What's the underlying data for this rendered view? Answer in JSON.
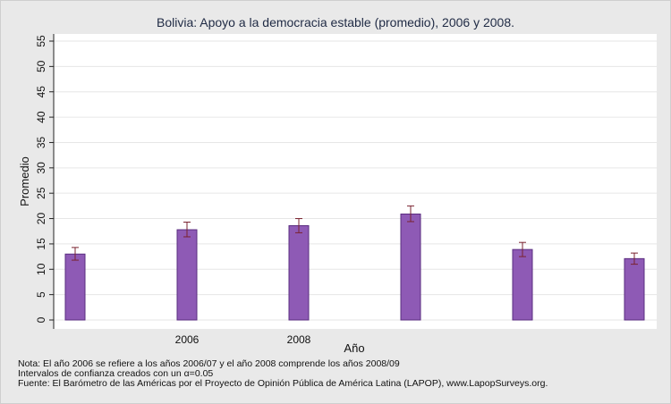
{
  "chart_data": {
    "type": "bar",
    "title": "Bolivia: Apoyo a la democracia estable (promedio), 2006 y 2008.",
    "xlabel": "Año",
    "ylabel": "Promedio",
    "ylim": [
      0,
      55
    ],
    "yticks": [
      0,
      5,
      10,
      15,
      20,
      25,
      30,
      35,
      40,
      45,
      50,
      55
    ],
    "categories": [
      "",
      "2006",
      "2008",
      "",
      "",
      ""
    ],
    "values": [
      13.0,
      17.8,
      18.6,
      20.9,
      13.9,
      12.1
    ],
    "ci_low": [
      11.8,
      16.4,
      17.2,
      19.4,
      12.5,
      11.0
    ],
    "ci_high": [
      14.3,
      19.3,
      20.0,
      22.5,
      15.3,
      13.2
    ],
    "bar_color": "#8e5ab5",
    "errorbar_color": "#7a2330",
    "grid": true,
    "legend": "none"
  },
  "notes": {
    "line1": "Nota: El año 2006 se refiere a los años 2006/07 y el año 2008 comprende los años 2008/09",
    "line2": "Intervalos de confianza creados con un α=0.05",
    "line3": "Fuente: El Barómetro de las Américas por el Proyecto de Opinión Pública de América Latina (LAPOP), www.LapopSurveys.org."
  }
}
